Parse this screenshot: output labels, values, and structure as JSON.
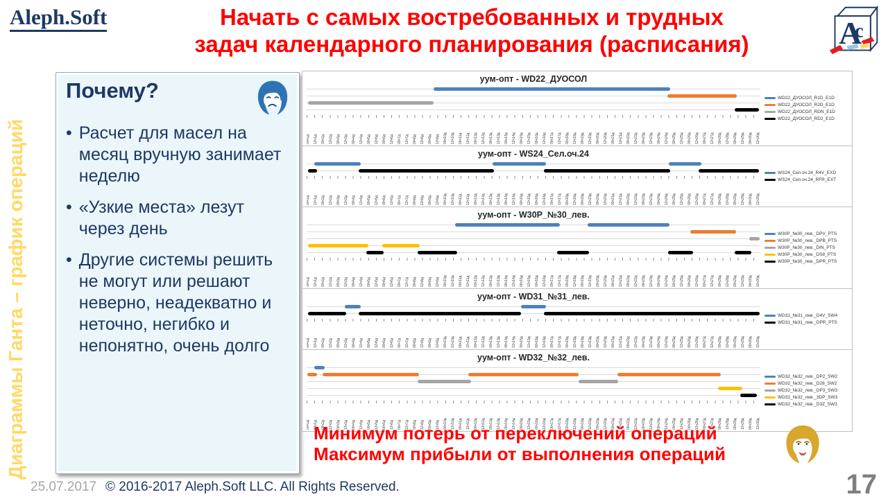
{
  "header": {
    "logo_text": "Aleph.Soft",
    "title_line1": "Начать с самых востребованных и трудных",
    "title_line2": "задач календарного планирования (расписания)"
  },
  "sidebar": {
    "vertical_text": "Диаграммы Ганта – график операций"
  },
  "why_box": {
    "heading": "Почему?",
    "bullets": [
      "Расчет для масел на месяц вручную занимает неделю",
      "«Узкие места» лезут через день",
      "Другие системы решить не могут или решают неверно, неадекватно и неточно, негибко и непонятно, очень долго"
    ]
  },
  "banner": {
    "line1": "Минимум потерь от переключений операций",
    "line2": "Максимум прибыли от выполнения операций"
  },
  "footer": {
    "date": "25.07.2017",
    "copyright": "© 2016-2017 Aleph.Soft LLC. All Rights Reserved.",
    "page_number": "17"
  },
  "colors": {
    "title_red": "#ff0000",
    "navy_text": "#1f3864",
    "gold_vertical": "#ffd966",
    "chart_blue": "#4e81bd",
    "chart_orange": "#ed7d31",
    "chart_gray": "#a5a5a5",
    "chart_yellow": "#ffc000",
    "chart_black": "#000000"
  },
  "icons": {
    "sad_face": "sad-face-icon",
    "happy_face": "happy-face-icon",
    "cube_logo": "ac-cube-logo-icon"
  },
  "time_ticks": [
    "00ч1д",
    "12ч1д",
    "00ч2д",
    "12ч2д",
    "00ч3д",
    "12ч3д",
    "00ч4д",
    "12ч4д",
    "00ч5д",
    "12ч5д",
    "00ч6д",
    "12ч6д",
    "00ч7д",
    "12ч7д",
    "00ч8д",
    "12ч8д",
    "00ч9д",
    "12ч9д",
    "00ч10д",
    "12ч10д",
    "00ч11д",
    "12ч11д",
    "00ч12д",
    "12ч12д",
    "00ч13д",
    "12ч13д",
    "00ч14д",
    "12ч14д",
    "00ч15д",
    "12ч15д",
    "00ч16д",
    "12ч16д",
    "00ч17д",
    "12ч17д",
    "00ч18д",
    "12ч18д",
    "00ч19д",
    "12ч19д",
    "00ч20д",
    "12ч20д",
    "00ч21д",
    "12ч21д",
    "00ч22д",
    "12ч22д",
    "00ч23д",
    "12ч23д",
    "00ч24д",
    "12ч24д",
    "00ч25д",
    "12ч25д",
    "00ч26д",
    "12ч26д",
    "00ч27д",
    "12ч27д",
    "00ч28д",
    "12ч28д",
    "00ч29д",
    "12ч29д",
    "00ч30д",
    "12ч30д"
  ],
  "chart_data": [
    {
      "type": "gantt",
      "title": "уум-опт - WD22_ДУОСОЛ",
      "x_axis": "time_ticks",
      "series": [
        {
          "name": "WD22_ДУОСОЛ_R1D_E1D",
          "color": "#4e81bd",
          "segments": [
            [
              28,
              80.2
            ]
          ]
        },
        {
          "name": "WD22_ДУОСОЛ_R2D_E1D",
          "color": "#ed7d31",
          "segments": [
            [
              79.5,
              94.8
            ]
          ]
        },
        {
          "name": "WD22_ДУОСОЛ_RDN_E1D",
          "color": "#a5a5a5",
          "segments": [
            [
              0.3,
              28
            ]
          ]
        },
        {
          "name": "WD22_ДУОСОЛ_RD2_E1D",
          "color": "#000000",
          "segments": [
            [
              94.3,
              99.7
            ]
          ]
        }
      ]
    },
    {
      "type": "gantt",
      "title": "уум-опт - WS24_Сел.оч.24",
      "x_axis": "time_ticks",
      "series": [
        {
          "name": "WS24_Сел.оч.24_R4V_EXD",
          "color": "#4e81bd",
          "segments": [
            [
              1.7,
              12
            ],
            [
              41,
              52.8
            ],
            [
              79.8,
              87
            ]
          ]
        },
        {
          "name": "WS24_Сел.оч.24_RFR_EXT",
          "color": "#000000",
          "segments": [
            [
              0.3,
              2.3
            ],
            [
              11.5,
              41.3
            ],
            [
              52.3,
              80.2
            ],
            [
              86.4,
              99.7
            ]
          ]
        }
      ]
    },
    {
      "type": "gantt",
      "title": "уум-опт - W30P_№30_лев.",
      "x_axis": "time_ticks",
      "series": [
        {
          "name": "W30P_№30_лев._DPV_PTS",
          "color": "#4e81bd",
          "segments": [
            [
              32.7,
              55.8
            ],
            [
              61.9,
              80
            ]
          ]
        },
        {
          "name": "W30P_№30_лев._DPB_PTS",
          "color": "#ed7d31",
          "segments": [
            [
              84.6,
              94.6
            ]
          ]
        },
        {
          "name": "W30P_№30_лев._DIN_PTS",
          "color": "#a5a5a5",
          "segments": [
            [
              97.6,
              99.9
            ]
          ]
        },
        {
          "name": "W30P_№30_лев._DS8_PTS",
          "color": "#ffc000",
          "segments": [
            [
              0.3,
              13.6
            ],
            [
              16.6,
              25
            ]
          ]
        },
        {
          "name": "W30P_№30_лев._DPR_PTS",
          "color": "#000000",
          "segments": [
            [
              13.2,
              16.9
            ],
            [
              24.5,
              33.2
            ],
            [
              55.2,
              62.3
            ],
            [
              79.7,
              85.1
            ],
            [
              94.4,
              98
            ]
          ]
        }
      ]
    },
    {
      "type": "gantt",
      "title": "уум-опт - WD31_№31_лев.",
      "x_axis": "time_ticks",
      "series": [
        {
          "name": "WD31_№31_лев._D4V_SW4",
          "color": "#4e81bd",
          "segments": [
            [
              8.4,
              11.9
            ],
            [
              47.3,
              52.8
            ]
          ]
        },
        {
          "name": "WD31_№31_лев._DPR_PTS",
          "color": "#000000",
          "segments": [
            [
              0.3,
              8.7
            ],
            [
              11.5,
              47.3
            ],
            [
              52.3,
              99.8
            ]
          ]
        }
      ]
    },
    {
      "type": "gantt",
      "title": "уум-опт - WD32_№32_лев.",
      "x_axis": "time_ticks",
      "series": [
        {
          "name": "WD32_№32_лев._DP2_SW2",
          "color": "#4e81bd",
          "segments": [
            [
              1.7,
              4
            ]
          ]
        },
        {
          "name": "WD32_№32_лев._D28_SW2",
          "color": "#ed7d31",
          "segments": [
            [
              0.1,
              2.3
            ],
            [
              3.5,
              24.8
            ],
            [
              35.7,
              60
            ],
            [
              68.5,
              91.3
            ]
          ]
        },
        {
          "name": "WD32_№32_лев._DP3_SW3",
          "color": "#a5a5a5",
          "segments": [
            [
              24.5,
              36.2
            ],
            [
              60,
              68.6
            ]
          ]
        },
        {
          "name": "WD32_№32_лев._3DP_SW3",
          "color": "#ffc000",
          "segments": [
            [
              90.6,
              96
            ]
          ]
        },
        {
          "name": "WD32_№32_лев._D3Z_SW3",
          "color": "#000000",
          "segments": [
            [
              95.5,
              99.3
            ]
          ]
        }
      ]
    }
  ]
}
